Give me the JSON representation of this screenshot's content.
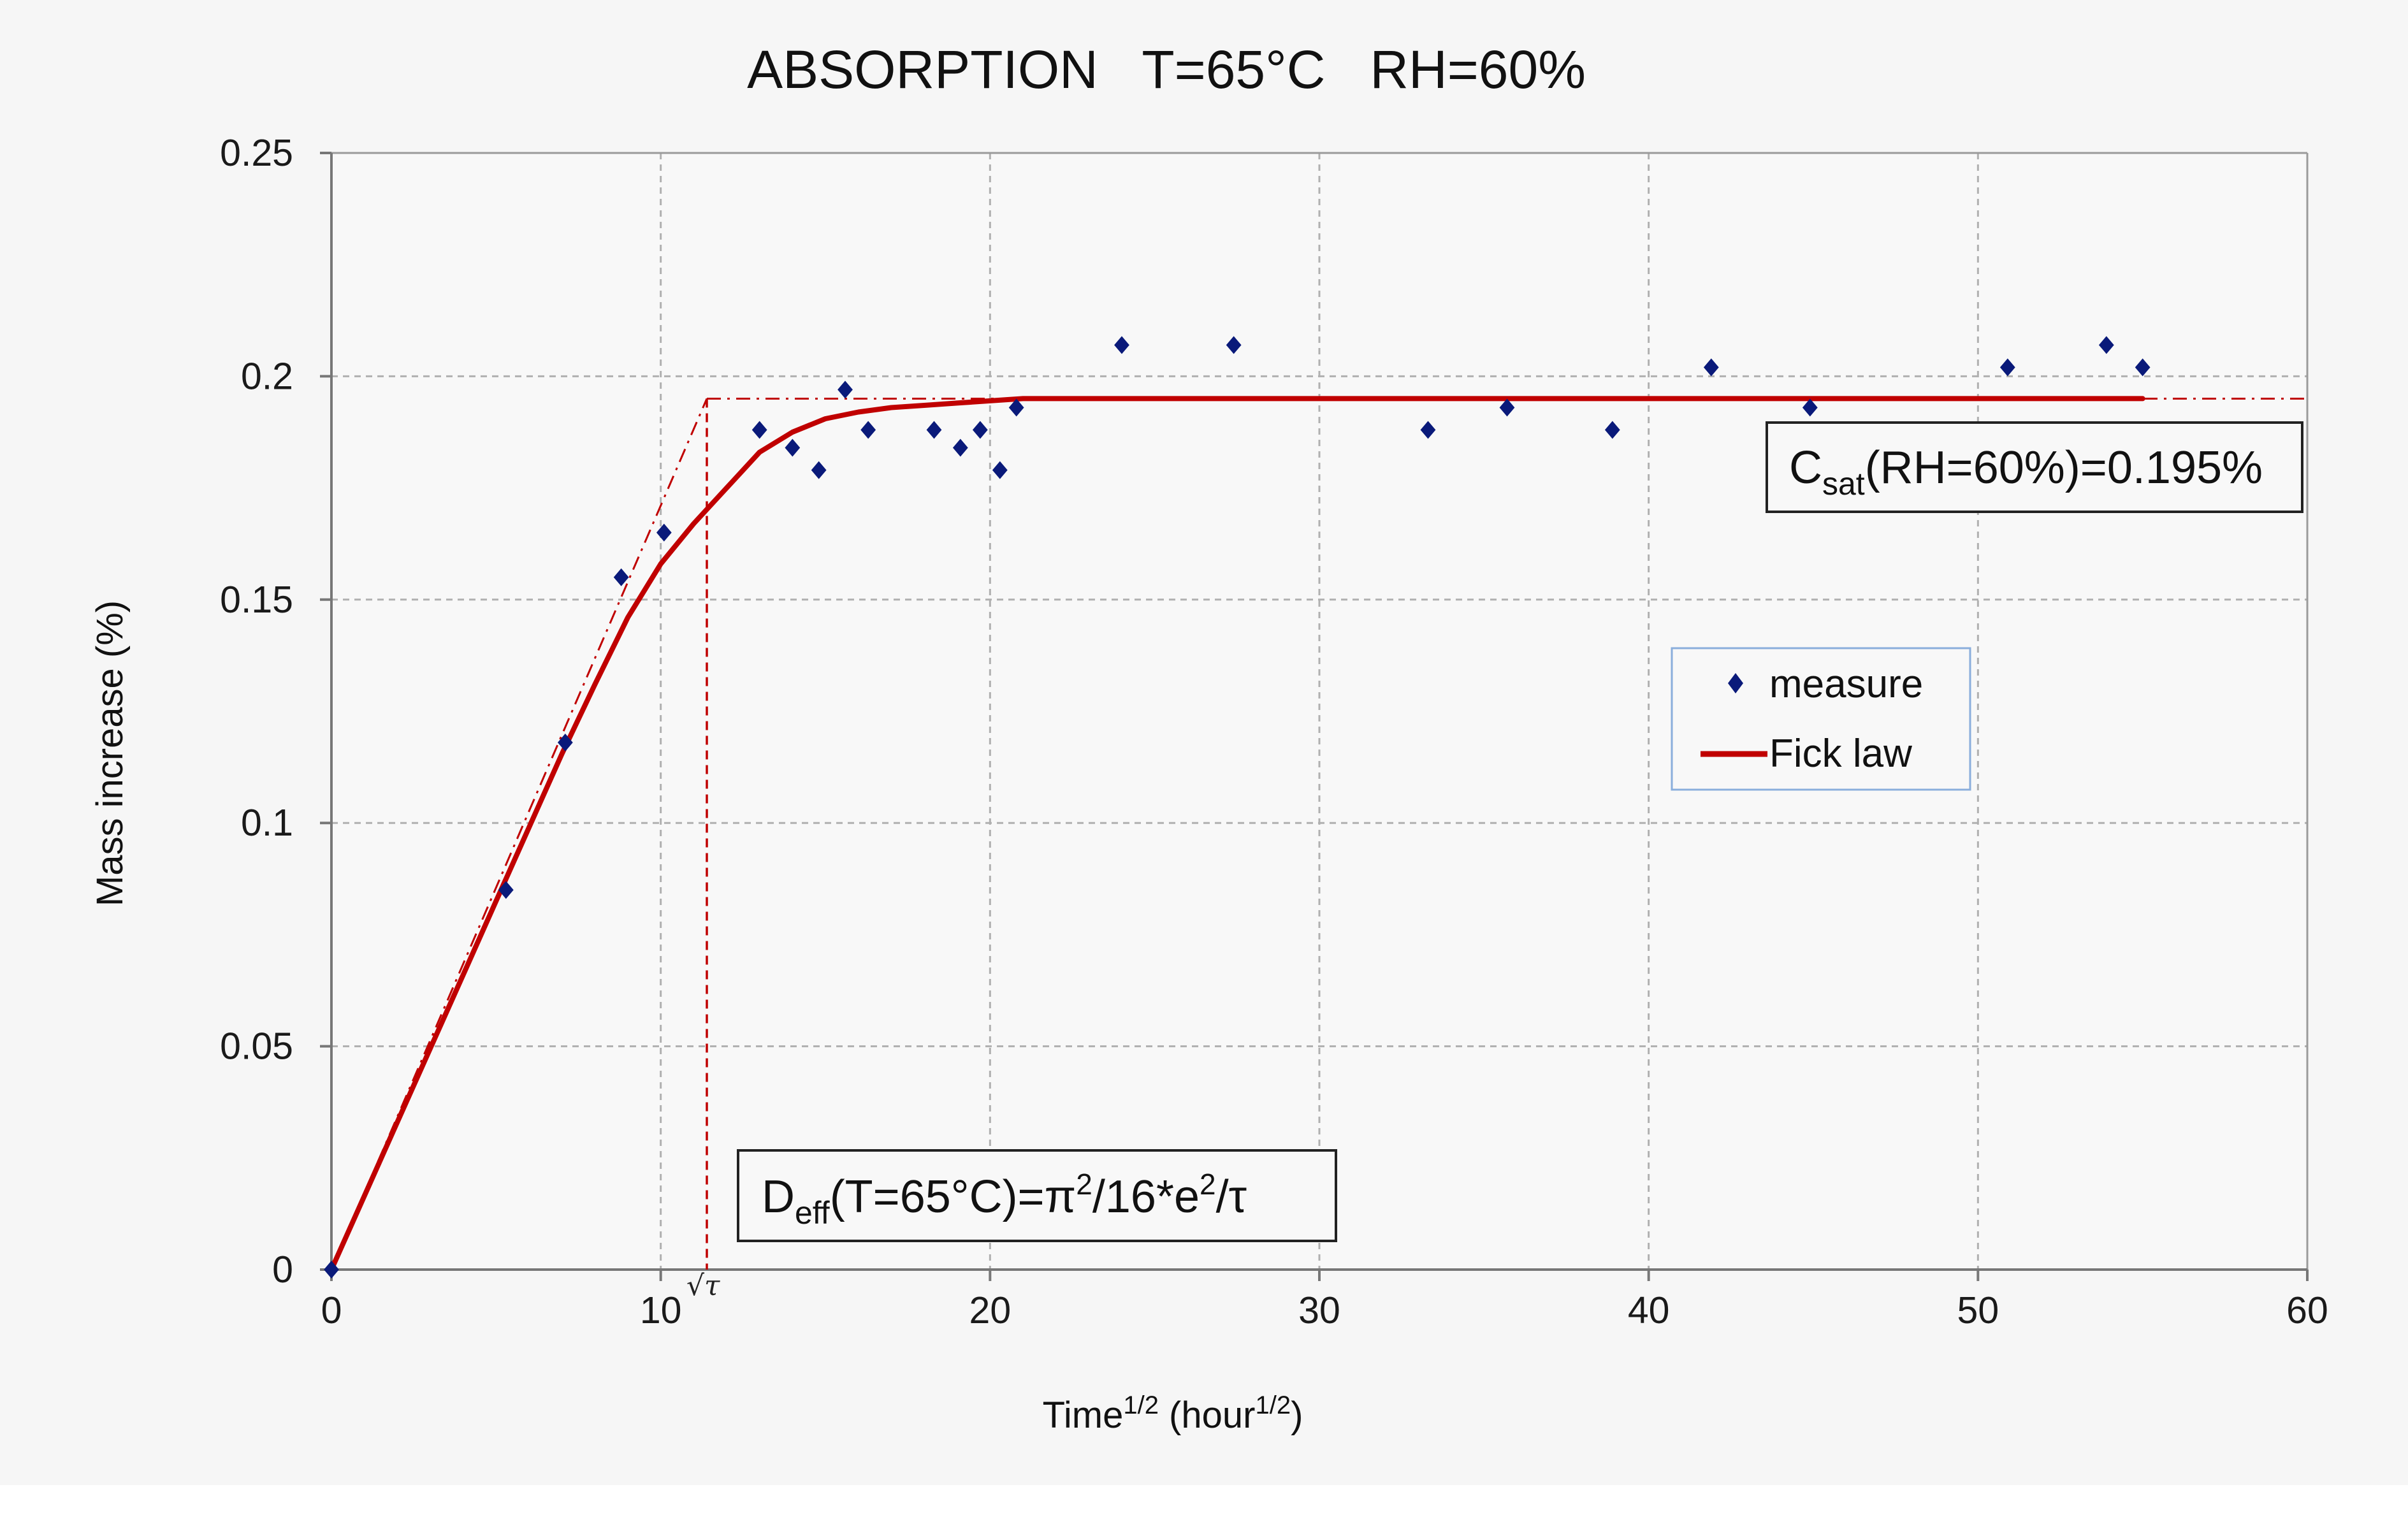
{
  "chart_data": {
    "type": "scatter",
    "title": "ABSORPTION   T=65°C   RH=60%",
    "xlabel": {
      "base": "Time",
      "sup": "1/2",
      "rest": " (hour",
      "sup2": "1/2",
      "end": ")"
    },
    "ylabel": "Mass increase (%)",
    "xlim": [
      0,
      60
    ],
    "ylim": [
      0,
      0.25
    ],
    "x_ticks": [
      0,
      10,
      20,
      30,
      40,
      50,
      60
    ],
    "y_ticks": [
      {
        "value": 0,
        "label": "0"
      },
      {
        "value": 0.05,
        "label": "0.05"
      },
      {
        "value": 0.1,
        "label": "0.1"
      },
      {
        "value": 0.15,
        "label": "0.15"
      },
      {
        "value": 0.2,
        "label": "0.2"
      },
      {
        "value": 0.25,
        "label": "0.25"
      }
    ],
    "grid": true,
    "legend_position": "center-right",
    "series": [
      {
        "name": "measure",
        "kind": "scatter",
        "marker": "diamond",
        "color": "#0a1a7a",
        "points": [
          [
            0,
            0
          ],
          [
            5.3,
            0.085
          ],
          [
            7.1,
            0.118
          ],
          [
            8.8,
            0.155
          ],
          [
            10.1,
            0.165
          ],
          [
            13.0,
            0.188
          ],
          [
            14.0,
            0.184
          ],
          [
            14.8,
            0.179
          ],
          [
            15.6,
            0.197
          ],
          [
            16.3,
            0.188
          ],
          [
            18.3,
            0.188
          ],
          [
            19.1,
            0.184
          ],
          [
            19.7,
            0.188
          ],
          [
            20.3,
            0.179
          ],
          [
            20.8,
            0.193
          ],
          [
            24.0,
            0.207
          ],
          [
            27.4,
            0.207
          ],
          [
            33.3,
            0.188
          ],
          [
            35.7,
            0.193
          ],
          [
            38.9,
            0.188
          ],
          [
            41.9,
            0.202
          ],
          [
            44.9,
            0.193
          ],
          [
            50.9,
            0.202
          ],
          [
            53.9,
            0.207
          ],
          [
            55.0,
            0.202
          ]
        ]
      },
      {
        "name": "Fick law",
        "kind": "line",
        "color": "#c00000",
        "points": [
          [
            0,
            0
          ],
          [
            1,
            0.0165
          ],
          [
            2,
            0.033
          ],
          [
            3,
            0.0495
          ],
          [
            4,
            0.066
          ],
          [
            5,
            0.0825
          ],
          [
            6,
            0.099
          ],
          [
            7,
            0.1155
          ],
          [
            8,
            0.131
          ],
          [
            9,
            0.146
          ],
          [
            10,
            0.158
          ],
          [
            11,
            0.167
          ],
          [
            12,
            0.175
          ],
          [
            13,
            0.183
          ],
          [
            14,
            0.1875
          ],
          [
            15,
            0.1905
          ],
          [
            16,
            0.192
          ],
          [
            17,
            0.193
          ],
          [
            18,
            0.1935
          ],
          [
            19,
            0.194
          ],
          [
            20,
            0.1945
          ],
          [
            21,
            0.195
          ],
          [
            25,
            0.195
          ],
          [
            30,
            0.195
          ],
          [
            40,
            0.195
          ],
          [
            50,
            0.195
          ],
          [
            55,
            0.195
          ]
        ]
      }
    ],
    "reference_lines": {
      "color": "#c00000",
      "slope_line": [
        [
          0,
          0
        ],
        [
          11.4,
          0.195
        ]
      ],
      "plateau_line": [
        [
          11.4,
          0.195
        ],
        [
          60,
          0.195
        ]
      ],
      "tau_x": 11.4,
      "tau_label": "√τ"
    },
    "annotations": {
      "csat": {
        "main": "C",
        "sub": "sat",
        "rest": "(RH=60%)=0.195%"
      },
      "deff": {
        "main": "D",
        "sub": "eff",
        "part1": "(T=65°C)=π",
        "sup1": "2",
        "part2": "/16*e",
        "sup2": "2",
        "part3": "/τ"
      }
    },
    "legend_entries": [
      "measure",
      "Fick law"
    ],
    "colors": {
      "plot_bg": "#f8f8f8",
      "grid": "#b0b0b0",
      "legend_border": "#8aaedc",
      "axis": "#777777"
    }
  }
}
